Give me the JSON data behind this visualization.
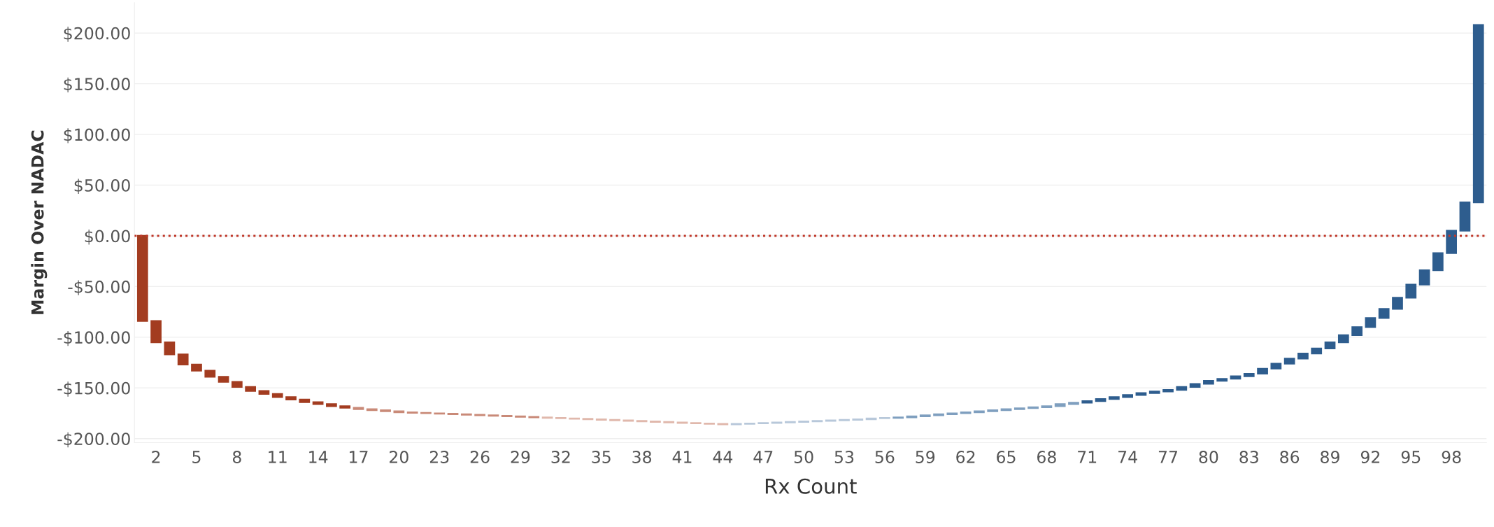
{
  "chart_data": {
    "type": "bar",
    "xlabel": "Rx Count",
    "ylabel": "Margin Over NADAC",
    "categories": [
      null,
      "2",
      null,
      null,
      "5",
      null,
      null,
      "8",
      null,
      null,
      "11",
      null,
      null,
      "14",
      null,
      null,
      "17",
      null,
      null,
      "20",
      null,
      null,
      "23",
      null,
      null,
      "26",
      null,
      null,
      "29",
      null,
      null,
      "32",
      null,
      null,
      "35",
      null,
      null,
      "38",
      null,
      null,
      "41",
      null,
      null,
      "44",
      null,
      null,
      "47",
      null,
      null,
      "50",
      null,
      null,
      "53",
      null,
      null,
      "56",
      null,
      null,
      "59",
      null,
      null,
      "62",
      null,
      null,
      "65",
      null,
      null,
      "68",
      null,
      null,
      "71",
      null,
      null,
      "74",
      null,
      null,
      "77",
      null,
      null,
      "80",
      null,
      null,
      "83",
      null,
      null,
      "86",
      null,
      null,
      "89",
      null,
      null,
      "92",
      null,
      null,
      "95",
      null,
      null,
      "98",
      null,
      null
    ],
    "values": [
      -84,
      -21,
      -12,
      -10,
      -6,
      -6,
      -5,
      -5,
      -4,
      -3,
      -3,
      -2.5,
      -2.5,
      -2,
      -2,
      -1.5,
      -1.5,
      -1,
      -1,
      -1,
      -0.5,
      -0.5,
      -0.5,
      -0.5,
      -0.5,
      -0.5,
      -0.5,
      -0.5,
      -0.5,
      -0.5,
      -0.5,
      -0.5,
      -0.5,
      -0.5,
      -0.5,
      -0.5,
      -0.5,
      -0.5,
      -0.5,
      -0.5,
      -0.5,
      -0.5,
      -0.5,
      -0.5,
      0.5,
      0.5,
      0.5,
      0.5,
      0.5,
      0.5,
      0.5,
      0.5,
      0.5,
      0.5,
      1,
      0.5,
      0.5,
      1,
      1,
      1,
      1,
      1,
      1,
      1,
      1,
      1,
      1,
      1,
      2,
      1.5,
      1.5,
      2,
      2,
      2,
      2,
      1.5,
      1.5,
      3,
      3,
      3,
      2,
      2.5,
      2.5,
      5,
      5,
      5,
      5,
      5,
      6,
      7,
      8,
      9,
      9,
      11,
      13,
      14,
      17,
      22,
      28,
      175
    ],
    "base": [
      0,
      -84,
      -105,
      -117,
      -127,
      -133,
      -139,
      -144,
      -149,
      -153,
      -156,
      -159,
      -161.5,
      -164,
      -166,
      -168,
      -169.5,
      -171,
      -172,
      -173,
      -174,
      -174.5,
      -175,
      -175.5,
      -176,
      -176.5,
      -177,
      -177.5,
      -178,
      -178.5,
      -179,
      -179.5,
      -180,
      -180.5,
      -181,
      -181.5,
      -182,
      -182.5,
      -183,
      -183.5,
      -184,
      -184.5,
      -185,
      -185.5,
      -186,
      -185.5,
      -185,
      -184.5,
      -184,
      -183.5,
      -183,
      -182.5,
      -182,
      -181.5,
      -181,
      -180,
      -179.5,
      -179,
      -178,
      -177,
      -176,
      -175,
      -174,
      -173,
      -172,
      -171,
      -170,
      -169,
      -168,
      -166,
      -164.5,
      -163,
      -161,
      -159,
      -157,
      -155,
      -153.5,
      -152,
      -149,
      -146,
      -143,
      -141,
      -138.5,
      -136,
      -131,
      -126,
      -121,
      -116,
      -111,
      -105,
      -98,
      -90,
      -81,
      -72,
      -61,
      -48,
      -34,
      -17,
      5,
      33
    ],
    "colors": [
      "#a33c20",
      "#a33c20",
      "#a33c20",
      "#a33c20",
      "#a33c20",
      "#a33c20",
      "#a33c20",
      "#a33c20",
      "#a33c20",
      "#a33c20",
      "#a33c20",
      "#a33c20",
      "#a33c20",
      "#a33c20",
      "#a33c20",
      "#a33c20",
      "#c98a78",
      "#c98a78",
      "#c98a78",
      "#c98a78",
      "#c98a78",
      "#c98a78",
      "#c98a78",
      "#c98a78",
      "#c98a78",
      "#c98a78",
      "#c98a78",
      "#c98a78",
      "#c98a78",
      "#c98a78",
      "#e0b8ac",
      "#e0b8ac",
      "#e0b8ac",
      "#e0b8ac",
      "#e0b8ac",
      "#e0b8ac",
      "#e0b8ac",
      "#e0b8ac",
      "#e0b8ac",
      "#e0b8ac",
      "#e0b8ac",
      "#e0b8ac",
      "#e0b8ac",
      "#e0b8ac",
      "#b8c8da",
      "#b8c8da",
      "#b8c8da",
      "#b8c8da",
      "#b8c8da",
      "#b8c8da",
      "#b8c8da",
      "#b8c8da",
      "#b8c8da",
      "#b8c8da",
      "#b8c8da",
      "#b8c8da",
      "#7f9fbf",
      "#7f9fbf",
      "#7f9fbf",
      "#7f9fbf",
      "#7f9fbf",
      "#7f9fbf",
      "#7f9fbf",
      "#7f9fbf",
      "#7f9fbf",
      "#7f9fbf",
      "#7f9fbf",
      "#7f9fbf",
      "#7f9fbf",
      "#7f9fbf",
      "#2e5d8e",
      "#2e5d8e",
      "#2e5d8e",
      "#2e5d8e",
      "#2e5d8e",
      "#2e5d8e",
      "#2e5d8e",
      "#2e5d8e",
      "#2e5d8e",
      "#2e5d8e",
      "#2e5d8e",
      "#2e5d8e",
      "#2e5d8e",
      "#2e5d8e",
      "#2e5d8e",
      "#2e5d8e",
      "#2e5d8e",
      "#2e5d8e",
      "#2e5d8e",
      "#2e5d8e",
      "#2e5d8e",
      "#2e5d8e",
      "#2e5d8e",
      "#2e5d8e",
      "#2e5d8e",
      "#2e5d8e",
      "#2e5d8e",
      "#2e5d8e",
      "#2e5d8e",
      "#2e5d8e"
    ],
    "ylim": [
      -204,
      230
    ],
    "yticks": [
      {
        "value": -200,
        "label": "-$200.00"
      },
      {
        "value": -150,
        "label": "-$150.00"
      },
      {
        "value": -100,
        "label": "-$100.00"
      },
      {
        "value": -50,
        "label": "-$50.00"
      },
      {
        "value": 0,
        "label": "$0.00"
      },
      {
        "value": 50,
        "label": "$50.00"
      },
      {
        "value": 100,
        "label": "$100.00"
      },
      {
        "value": 150,
        "label": "$150.00"
      },
      {
        "value": 200,
        "label": "$200.00"
      }
    ],
    "grid": "y",
    "ref_lines": [
      {
        "axis": "y",
        "value": 0,
        "color": "#c0392b",
        "line_style": "dotted"
      }
    ]
  }
}
